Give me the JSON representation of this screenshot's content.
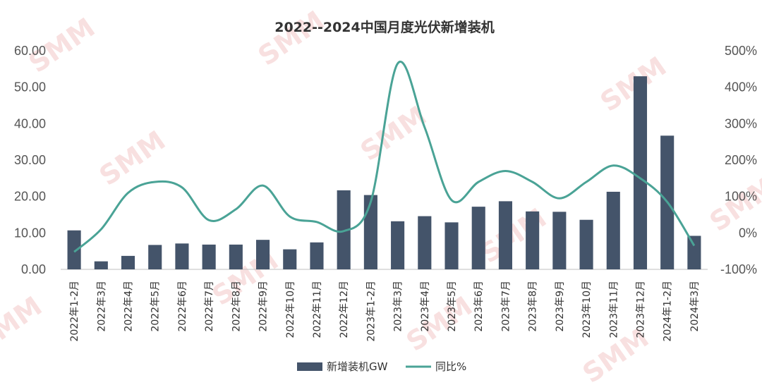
{
  "chart_data": {
    "type": "bar+line",
    "title": "2022--2024中国月度光伏新增装机",
    "categories": [
      "2022年1-2月",
      "2022年3月",
      "2022年4月",
      "2022年5月",
      "2022年6月",
      "2022年7月",
      "2022年8月",
      "2022年9月",
      "2022年10月",
      "2022年11月",
      "2022年12月",
      "2023年1-2月",
      "2023年3月",
      "2023年4月",
      "2023年5月",
      "2023年6月",
      "2023年7月",
      "2023年8月",
      "2023年9月",
      "2023年10月",
      "2023年11月",
      "2023年12月",
      "2024年1-2月",
      "2024年3月"
    ],
    "y_left": {
      "ticks": [
        "0.00",
        "10.00",
        "20.00",
        "30.00",
        "40.00",
        "50.00",
        "60.00"
      ],
      "ylim": [
        0,
        60
      ]
    },
    "y_right": {
      "ticks": [
        "-100%",
        "0%",
        "100%",
        "200%",
        "300%",
        "400%",
        "500%"
      ],
      "ylim": [
        -100,
        500
      ]
    },
    "series": [
      {
        "name": "新增装机GW",
        "type": "bar",
        "axis": "left",
        "color": "#44546a",
        "values": [
          10.7,
          2.2,
          3.7,
          6.7,
          7.1,
          6.8,
          6.8,
          8.1,
          5.5,
          7.4,
          21.7,
          20.4,
          13.2,
          14.6,
          12.9,
          17.2,
          18.7,
          15.9,
          15.8,
          13.6,
          21.3,
          53.0,
          36.7,
          9.2
        ]
      },
      {
        "name": "同比%",
        "type": "line",
        "axis": "right",
        "color": "#4aa396",
        "values": [
          -52,
          10,
          110,
          140,
          125,
          35,
          65,
          130,
          45,
          30,
          5,
          85,
          465,
          290,
          90,
          140,
          170,
          140,
          95,
          140,
          185,
          150,
          85,
          -35
        ]
      }
    ],
    "legend": "bottom-center",
    "grid": false
  },
  "watermark": {
    "text": "SMM",
    "color": "#f3c7c7"
  }
}
